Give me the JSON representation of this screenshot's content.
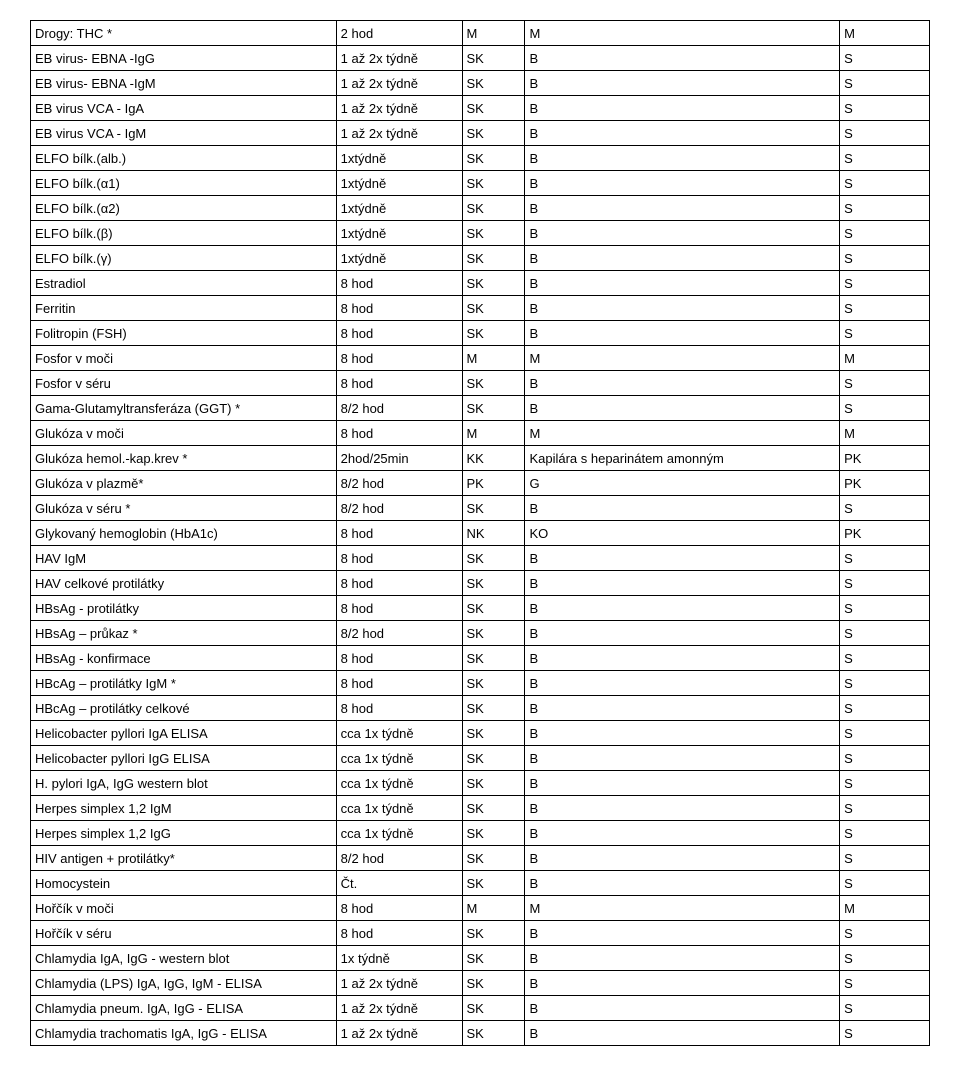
{
  "rows": [
    [
      "Drogy: THC *",
      "2 hod",
      "M",
      "M",
      "M"
    ],
    [
      "EB virus- EBNA -IgG",
      "1 až 2x týdně",
      "SK",
      "B",
      "S"
    ],
    [
      "EB virus- EBNA -IgM",
      "1 až 2x týdně",
      "SK",
      "B",
      "S"
    ],
    [
      "EB virus VCA - IgA",
      "1 až 2x týdně",
      "SK",
      "B",
      "S"
    ],
    [
      "EB virus VCA - IgM",
      "1 až 2x týdně",
      "SK",
      "B",
      "S"
    ],
    [
      "ELFO bílk.(alb.)",
      "1xtýdně",
      "SK",
      "B",
      "S"
    ],
    [
      "ELFO bílk.(α1)",
      "1xtýdně",
      "SK",
      "B",
      "S"
    ],
    [
      "ELFO bílk.(α2)",
      "1xtýdně",
      "SK",
      "B",
      "S"
    ],
    [
      "ELFO bílk.(β)",
      "1xtýdně",
      "SK",
      "B",
      "S"
    ],
    [
      "ELFO bílk.(γ)",
      "1xtýdně",
      "SK",
      "B",
      "S"
    ],
    [
      "Estradiol",
      "8 hod",
      "SK",
      "B",
      "S"
    ],
    [
      "Ferritin",
      "8 hod",
      "SK",
      "B",
      "S"
    ],
    [
      "Folitropin (FSH)",
      "8 hod",
      "SK",
      "B",
      "S"
    ],
    [
      "Fosfor  v moči",
      "8 hod",
      "M",
      "M",
      "M"
    ],
    [
      "Fosfor v séru",
      "8 hod",
      "SK",
      "B",
      "S"
    ],
    [
      "Gama-Glutamyltransferáza (GGT) *",
      "8/2 hod",
      "SK",
      "B",
      "S"
    ],
    [
      "Glukóza v moči",
      "8 hod",
      "M",
      "M",
      "M"
    ],
    [
      "Glukóza hemol.-kap.krev *",
      "2hod/25min",
      "KK",
      "Kapilára s heparinátem amonným",
      "PK"
    ],
    [
      "Glukóza v plazmě*",
      "8/2 hod",
      "PK",
      "G",
      "PK"
    ],
    [
      "Glukóza v séru *",
      "8/2 hod",
      "SK",
      "B",
      "S"
    ],
    [
      "Glykovaný hemoglobin (HbA1c)",
      "8 hod",
      "NK",
      "KO",
      "PK"
    ],
    [
      "HAV IgM",
      "8 hod",
      "SK",
      "B",
      "S"
    ],
    [
      "HAV celkové protilátky",
      "8 hod",
      "SK",
      "B",
      "S"
    ],
    [
      "HBsAg - protilátky",
      "8 hod",
      "SK",
      "B",
      "S"
    ],
    [
      "HBsAg – průkaz *",
      "8/2 hod",
      "SK",
      "B",
      "S"
    ],
    [
      "HBsAg - konfirmace",
      "8 hod",
      "SK",
      "B",
      "S"
    ],
    [
      "HBcAg – protilátky IgM *",
      "8 hod",
      "SK",
      "B",
      "S"
    ],
    [
      "HBcAg – protilátky celkové",
      "8 hod",
      "SK",
      "B",
      "S"
    ],
    [
      "Helicobacter pyllori IgA ELISA",
      "cca 1x týdně",
      "SK",
      "B",
      "S"
    ],
    [
      "Helicobacter pyllori IgG ELISA",
      "cca 1x týdně",
      "SK",
      "B",
      "S"
    ],
    [
      "H. pylori IgA, IgG western blot",
      "cca 1x týdně",
      "SK",
      "B",
      "S"
    ],
    [
      "Herpes simplex 1,2 IgM",
      "cca 1x týdně",
      "SK",
      "B",
      "S"
    ],
    [
      "Herpes simplex 1,2 IgG",
      "cca 1x týdně",
      "SK",
      "B",
      "S"
    ],
    [
      "HIV antigen + protilátky*",
      "8/2 hod",
      "SK",
      "B",
      "S"
    ],
    [
      "Homocystein",
      "Čt.",
      "SK",
      "B",
      "S"
    ],
    [
      "Hořčík v moči",
      "8 hod",
      "M",
      "M",
      "M"
    ],
    [
      "Hořčík v séru",
      "8 hod",
      "SK",
      "B",
      "S"
    ],
    [
      "Chlamydia IgA, IgG - western blot",
      "1x týdně",
      "SK",
      "B",
      "S"
    ],
    [
      "Chlamydia (LPS) IgA, IgG, IgM - ELISA",
      "1 až 2x týdně",
      "SK",
      "B",
      "S"
    ],
    [
      "Chlamydia pneum. IgA, IgG - ELISA",
      "1 až 2x týdně",
      "SK",
      "B",
      "S"
    ],
    [
      "Chlamydia trachomatis IgA, IgG - ELISA",
      "1 až 2x týdně",
      "SK",
      "B",
      "S"
    ]
  ]
}
